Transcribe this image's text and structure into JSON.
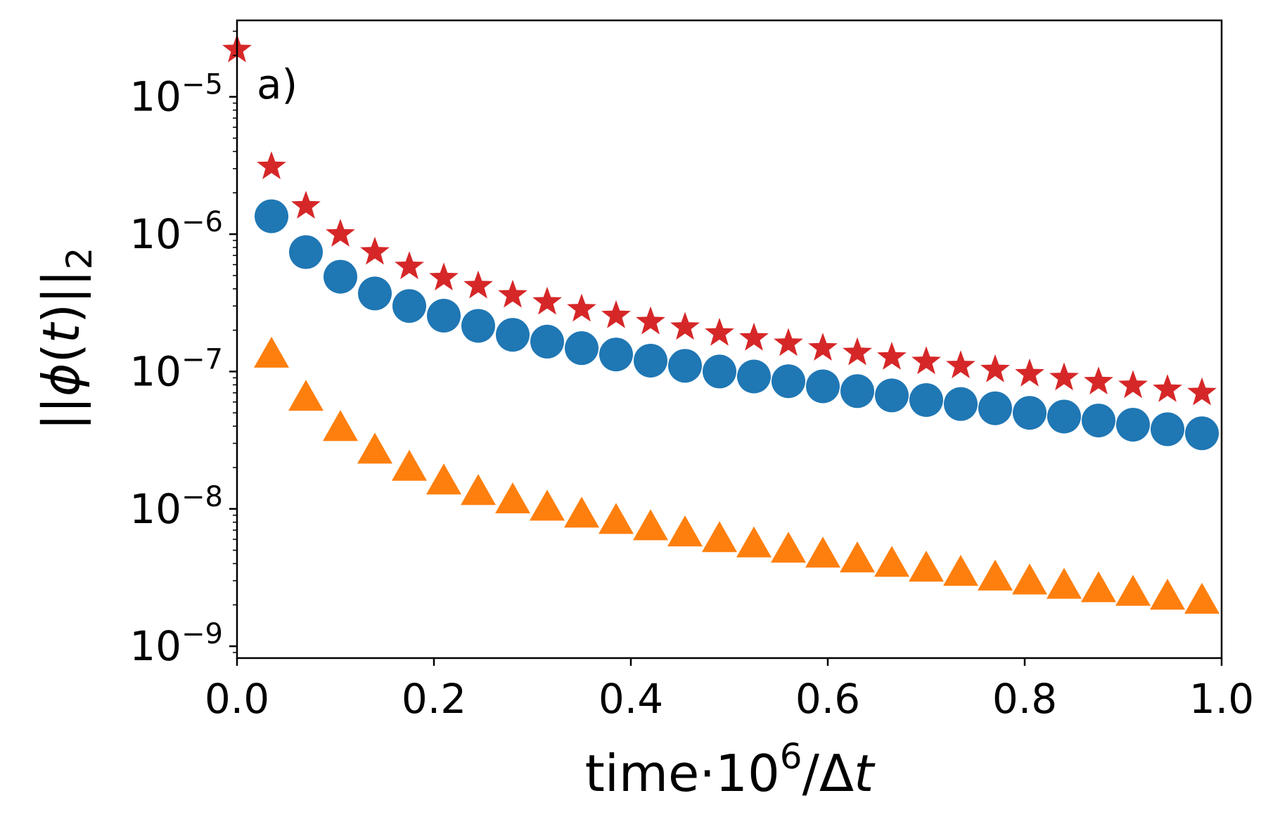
{
  "chart_data": {
    "type": "scatter",
    "panel_label": "a)",
    "xlabel": {
      "base": "time·10",
      "sup": "6",
      "mid": "/Δ",
      "italic": "t"
    },
    "ylabel": {
      "open": "||",
      "phi": "ϕ",
      "paren_open": "(",
      "t": "t",
      "paren_close": ")",
      "close": "||",
      "sub": "2"
    },
    "xlim": [
      0.0,
      1.0
    ],
    "ylim": [
      8.2e-10,
      3.6e-05
    ],
    "yscale": "log",
    "xticks": [
      {
        "value": 0.0,
        "label": "0.0"
      },
      {
        "value": 0.2,
        "label": "0.2"
      },
      {
        "value": 0.4,
        "label": "0.4"
      },
      {
        "value": 0.6,
        "label": "0.6"
      },
      {
        "value": 0.8,
        "label": "0.8"
      },
      {
        "value": 1.0,
        "label": "1.0"
      }
    ],
    "yticks": [
      {
        "exp": -9,
        "base": "10",
        "sup": "−9"
      },
      {
        "exp": -8,
        "base": "10",
        "sup": "−8"
      },
      {
        "exp": -7,
        "base": "10",
        "sup": "−7"
      },
      {
        "exp": -6,
        "base": "10",
        "sup": "−6"
      },
      {
        "exp": -5,
        "base": "10",
        "sup": "−5"
      }
    ],
    "series": [
      {
        "name": "stars",
        "marker": "star",
        "color": "#d62728",
        "x": [
          0.0,
          0.035,
          0.07,
          0.105,
          0.14,
          0.175,
          0.21,
          0.245,
          0.28,
          0.315,
          0.35,
          0.385,
          0.42,
          0.455,
          0.49,
          0.525,
          0.56,
          0.595,
          0.63,
          0.665,
          0.7,
          0.735,
          0.77,
          0.805,
          0.84,
          0.875,
          0.91,
          0.945,
          0.98
        ],
        "y": [
          2.2e-05,
          3.1e-06,
          1.6e-06,
          1e-06,
          7.4e-07,
          5.8e-07,
          4.8e-07,
          4.2e-07,
          3.6e-07,
          3.2e-07,
          2.85e-07,
          2.55e-07,
          2.3e-07,
          2.1e-07,
          1.9e-07,
          1.75e-07,
          1.6e-07,
          1.48e-07,
          1.37e-07,
          1.27e-07,
          1.18e-07,
          1.1e-07,
          1.03e-07,
          9.6e-08,
          9e-08,
          8.4e-08,
          7.9e-08,
          7.4e-08,
          7e-08
        ]
      },
      {
        "name": "circles",
        "marker": "circle",
        "color": "#1f77b4",
        "x": [
          0.035,
          0.07,
          0.105,
          0.14,
          0.175,
          0.21,
          0.245,
          0.28,
          0.315,
          0.35,
          0.385,
          0.42,
          0.455,
          0.49,
          0.525,
          0.56,
          0.595,
          0.63,
          0.665,
          0.7,
          0.735,
          0.77,
          0.805,
          0.84,
          0.875,
          0.91,
          0.945,
          0.98
        ],
        "y": [
          1.35e-06,
          7.4e-07,
          4.9e-07,
          3.7e-07,
          3e-07,
          2.55e-07,
          2.15e-07,
          1.85e-07,
          1.65e-07,
          1.48e-07,
          1.33e-07,
          1.2e-07,
          1.1e-07,
          1e-07,
          9.2e-08,
          8.5e-08,
          7.8e-08,
          7.2e-08,
          6.7e-08,
          6.2e-08,
          5.8e-08,
          5.4e-08,
          5e-08,
          4.7e-08,
          4.4e-08,
          4.1e-08,
          3.8e-08,
          3.55e-08
        ]
      },
      {
        "name": "triangles",
        "marker": "triangle",
        "color": "#ff7f0e",
        "x": [
          0.035,
          0.07,
          0.105,
          0.14,
          0.175,
          0.21,
          0.245,
          0.28,
          0.315,
          0.35,
          0.385,
          0.42,
          0.455,
          0.49,
          0.525,
          0.56,
          0.595,
          0.63,
          0.665,
          0.7,
          0.735,
          0.77,
          0.805,
          0.84,
          0.875,
          0.91,
          0.945,
          0.98
        ],
        "y": [
          1.3e-07,
          6.3e-08,
          3.8e-08,
          2.6e-08,
          1.95e-08,
          1.55e-08,
          1.3e-08,
          1.13e-08,
          1e-08,
          8.9e-09,
          8e-09,
          7.2e-09,
          6.5e-09,
          5.9e-09,
          5.4e-09,
          4.95e-09,
          4.55e-09,
          4.2e-09,
          3.9e-09,
          3.6e-09,
          3.35e-09,
          3.1e-09,
          2.9e-09,
          2.7e-09,
          2.55e-09,
          2.4e-09,
          2.25e-09,
          2.1e-09
        ]
      }
    ]
  }
}
